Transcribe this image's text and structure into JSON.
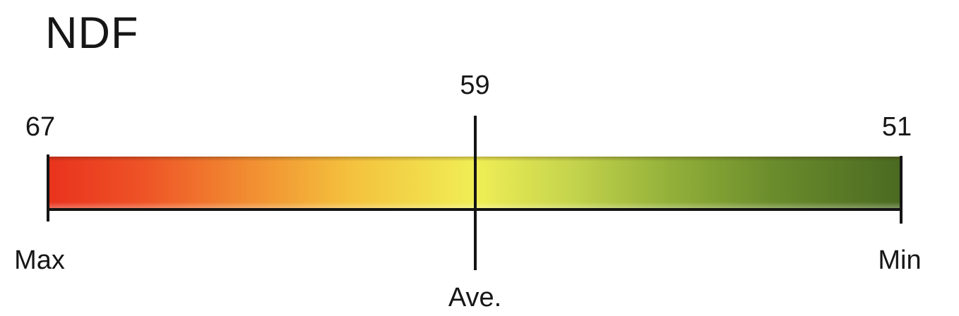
{
  "chart_data": {
    "type": "gauge",
    "orientation": "horizontal",
    "title": "NDF",
    "scale": {
      "left_value": 67,
      "left_label": "Max",
      "right_value": 51,
      "right_label": "Min"
    },
    "marker": {
      "value": 59,
      "label": "Ave."
    },
    "gradient_stops": [
      {
        "pos": 0,
        "color": "#E9331E"
      },
      {
        "pos": 11,
        "color": "#EE5326"
      },
      {
        "pos": 23,
        "color": "#F18B31"
      },
      {
        "pos": 35,
        "color": "#F4C03D"
      },
      {
        "pos": 50,
        "color": "#F0EE55"
      },
      {
        "pos": 61,
        "color": "#C6D54D"
      },
      {
        "pos": 73,
        "color": "#92B039"
      },
      {
        "pos": 85,
        "color": "#6B8C2C"
      },
      {
        "pos": 100,
        "color": "#4A6A21"
      }
    ],
    "colors": {
      "text": "#161616",
      "line": "#141414",
      "background": "#FFFFFF"
    }
  }
}
